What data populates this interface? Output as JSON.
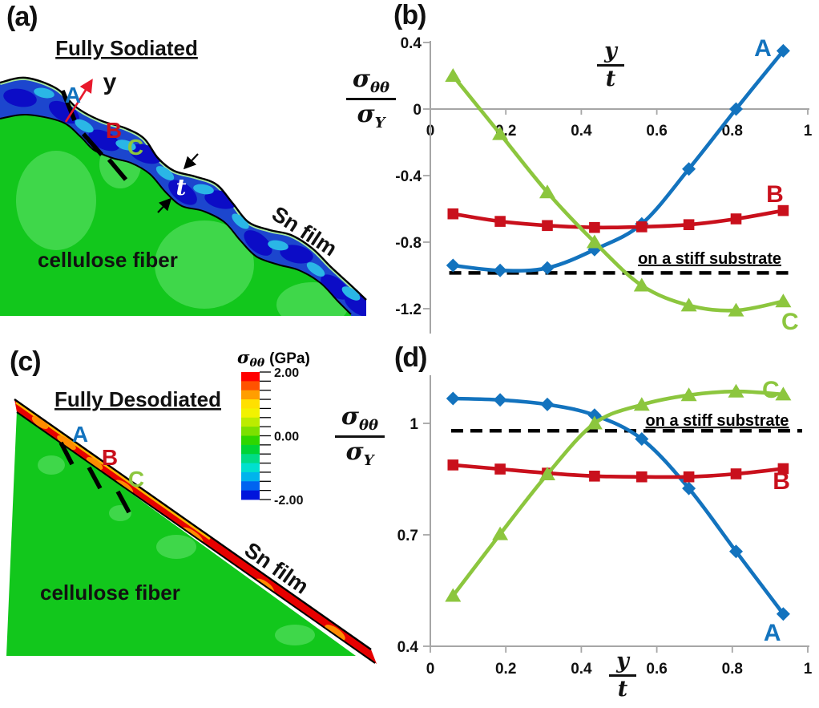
{
  "panels": {
    "a": {
      "tag": "(a)",
      "title": "Fully Sodiated",
      "label_A": "A",
      "label_B": "B",
      "label_C": "C",
      "y_arrow": "y",
      "thickness": "t",
      "film": "Sn film",
      "fiber": "cellulose fiber"
    },
    "b": {
      "tag": "(b)"
    },
    "c": {
      "tag": "(c)",
      "title": "Fully Desodiated",
      "label_A": "A",
      "label_B": "B",
      "label_C": "C",
      "film": "Sn film",
      "fiber": "cellulose fiber"
    },
    "d": {
      "tag": "(d)"
    }
  },
  "math": {
    "sigma": "σ",
    "theta": "θθ",
    "Y": "Y",
    "y": "y",
    "t": "t"
  },
  "colorbar": {
    "title_sigma": "σ",
    "title_sub": "θθ",
    "title_unit": "(GPa)",
    "tick_labels": [
      "2.00",
      "0.00",
      "-2.00"
    ],
    "colors": [
      "#FF0000",
      "#FF5200",
      "#FF9E00",
      "#FFE000",
      "#F2F200",
      "#BCEC00",
      "#7CE000",
      "#2ED600",
      "#00D435",
      "#00DC86",
      "#00E0CE",
      "#00B4EC",
      "#0064F0",
      "#0014DC"
    ]
  },
  "colors": {
    "series_A": "#1373BE",
    "series_B": "#C9101C",
    "series_C": "#8CC63E",
    "axis_gray": "#A6A6A6",
    "dashed": "#000000",
    "fiber_green": "#12C71C",
    "fiber_light": "#3FD74A",
    "film_blue": "#1C46CE",
    "film_navy": "#0C0CC6",
    "film_cyan": "#2AB6E6",
    "film_skin": "#A6E8A0",
    "film_red": "#E60000",
    "film_orange": "#FF8C00"
  },
  "chart_data": [
    {
      "id": "b",
      "type": "line",
      "xlabel": "y/t",
      "ylabel": "σθθ/σY",
      "xlim": [
        0,
        1
      ],
      "ylim": [
        -1.35,
        0.42
      ],
      "grid": false,
      "legend_position": "inline-labels",
      "x": [
        0.06,
        0.185,
        0.31,
        0.435,
        0.56,
        0.685,
        0.81,
        0.935
      ],
      "xticks": [
        {
          "v": 0,
          "label": "0"
        },
        {
          "v": 0.2,
          "label": "0.2"
        },
        {
          "v": 0.4,
          "label": "0.4"
        },
        {
          "v": 0.6,
          "label": "0.6"
        },
        {
          "v": 0.8,
          "label": "0.8"
        },
        {
          "v": 1,
          "label": "1"
        }
      ],
      "yticks": [
        {
          "v": 0.4,
          "label": "0.4"
        },
        {
          "v": 0,
          "label": "0"
        },
        {
          "v": -0.4,
          "label": "-0.4"
        },
        {
          "v": -0.8,
          "label": "-0.8"
        },
        {
          "v": -1.2,
          "label": "-1.2"
        }
      ],
      "series": [
        {
          "name": "A",
          "marker": "diamond",
          "color": "#1373BE",
          "values": [
            -0.94,
            -0.97,
            -0.955,
            -0.845,
            -0.69,
            -0.36,
            0,
            0.35
          ],
          "label_x": 0.881,
          "label_y": 0.318
        },
        {
          "name": "B",
          "marker": "square",
          "color": "#C9101C",
          "values": [
            -0.63,
            -0.675,
            -0.7,
            -0.712,
            -0.708,
            -0.695,
            -0.66,
            -0.61
          ],
          "label_x": 0.913,
          "label_y": -0.559
        },
        {
          "name": "C",
          "marker": "triangle",
          "color": "#8CC63E",
          "values": [
            0.2,
            -0.15,
            -0.5,
            -0.8,
            -1.06,
            -1.18,
            -1.21,
            -1.155
          ],
          "label_x": 0.953,
          "label_y": -1.325
        }
      ],
      "dashed": {
        "y": -0.985,
        "x0": 0.05,
        "x1": 0.96,
        "label": "on a stiff substrate",
        "label_x": 0.74,
        "label_y": -0.93
      }
    },
    {
      "id": "d",
      "type": "line",
      "xlabel": "y/t",
      "ylabel": "σθθ/σY",
      "xlim": [
        0,
        1
      ],
      "ylim": [
        0.4,
        1.125
      ],
      "grid": false,
      "legend_position": "inline-labels",
      "x": [
        0.06,
        0.185,
        0.31,
        0.435,
        0.56,
        0.685,
        0.81,
        0.935
      ],
      "xticks": [
        {
          "v": 0,
          "label": "0"
        },
        {
          "v": 0.2,
          "label": "0.2"
        },
        {
          "v": 0.4,
          "label": "0.4"
        },
        {
          "v": 0.6,
          "label": "0.6"
        },
        {
          "v": 0.8,
          "label": "0.8"
        },
        {
          "v": 1,
          "label": "1"
        }
      ],
      "yticks": [
        {
          "v": 1,
          "label": "1"
        },
        {
          "v": 0.7,
          "label": "0.7"
        },
        {
          "v": 0.4,
          "label": "0.4"
        }
      ],
      "series": [
        {
          "name": "A",
          "marker": "diamond",
          "color": "#1373BE",
          "values": [
            1.067,
            1.063,
            1.051,
            1.022,
            0.958,
            0.825,
            0.655,
            0.487
          ],
          "label_x": 0.906,
          "label_y": 0.415
        },
        {
          "name": "B",
          "marker": "square",
          "color": "#C9101C",
          "values": [
            0.888,
            0.877,
            0.866,
            0.858,
            0.856,
            0.856,
            0.864,
            0.878
          ],
          "label_x": 0.93,
          "label_y": 0.823
        },
        {
          "name": "C",
          "marker": "triangle",
          "color": "#8CC63E",
          "values": [
            0.536,
            0.702,
            0.863,
            1.0,
            1.05,
            1.076,
            1.086,
            1.078
          ],
          "label_x": 0.902,
          "label_y": 1.069
        }
      ],
      "dashed": {
        "y": 0.98,
        "x0": 0.055,
        "x1": 0.985,
        "label": "on a stiff substrate",
        "label_x": 0.76,
        "label_y": 0.993
      }
    }
  ]
}
